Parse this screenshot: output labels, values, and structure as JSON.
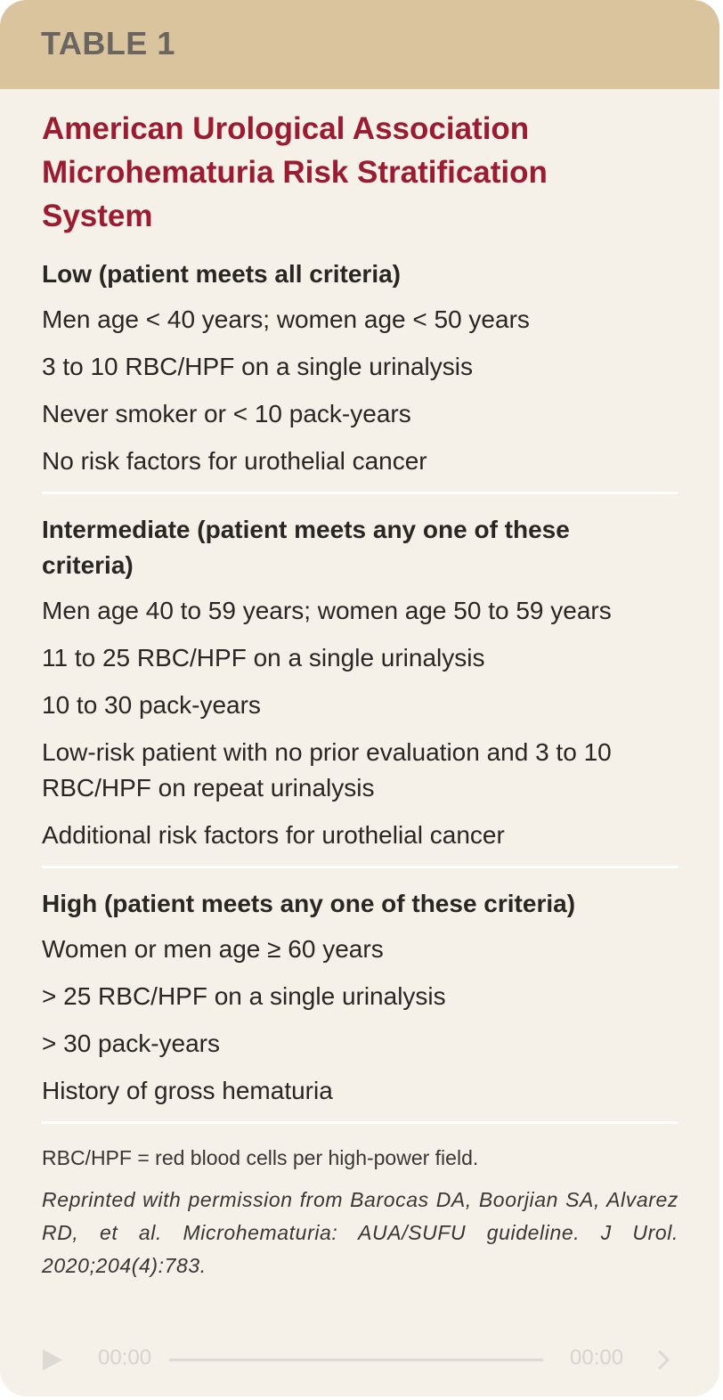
{
  "header": {
    "label": "TABLE 1"
  },
  "title": "American Urological Association Microhematuria Risk Stratification System",
  "sections": [
    {
      "heading": "Low (patient meets all criteria)",
      "items": [
        "Men age < 40 years; women age < 50 years",
        "3 to 10 RBC/HPF on a single urinalysis",
        "Never smoker or < 10 pack-years",
        "No risk factors for urothelial cancer"
      ]
    },
    {
      "heading": "Intermediate (patient meets any one of these criteria)",
      "items": [
        "Men age 40 to 59 years; women age 50 to 59 years",
        "11 to 25 RBC/HPF on a single urinalysis",
        "10 to 30 pack-years",
        "Low-risk patient with no prior evaluation and 3 to 10 RBC/HPF on repeat urinalysis",
        "Additional risk factors for urothelial cancer"
      ]
    },
    {
      "heading": "High (patient meets any one of these criteria)",
      "items": [
        "Women or men age ≥ 60 years",
        "> 25 RBC/HPF on a single urinalysis",
        "> 30 pack-years",
        "History of gross hematuria"
      ]
    }
  ],
  "footnote": "RBC/HPF = red blood cells per high-power field.",
  "citation": "Reprinted with permission from Barocas DA, Boorjian SA, Alvarez RD, et al. Microhematuria: AUA/SUFU guideline. J Urol. 2020;204(4):783.",
  "video": {
    "current": "00:00",
    "total": "00:00"
  }
}
